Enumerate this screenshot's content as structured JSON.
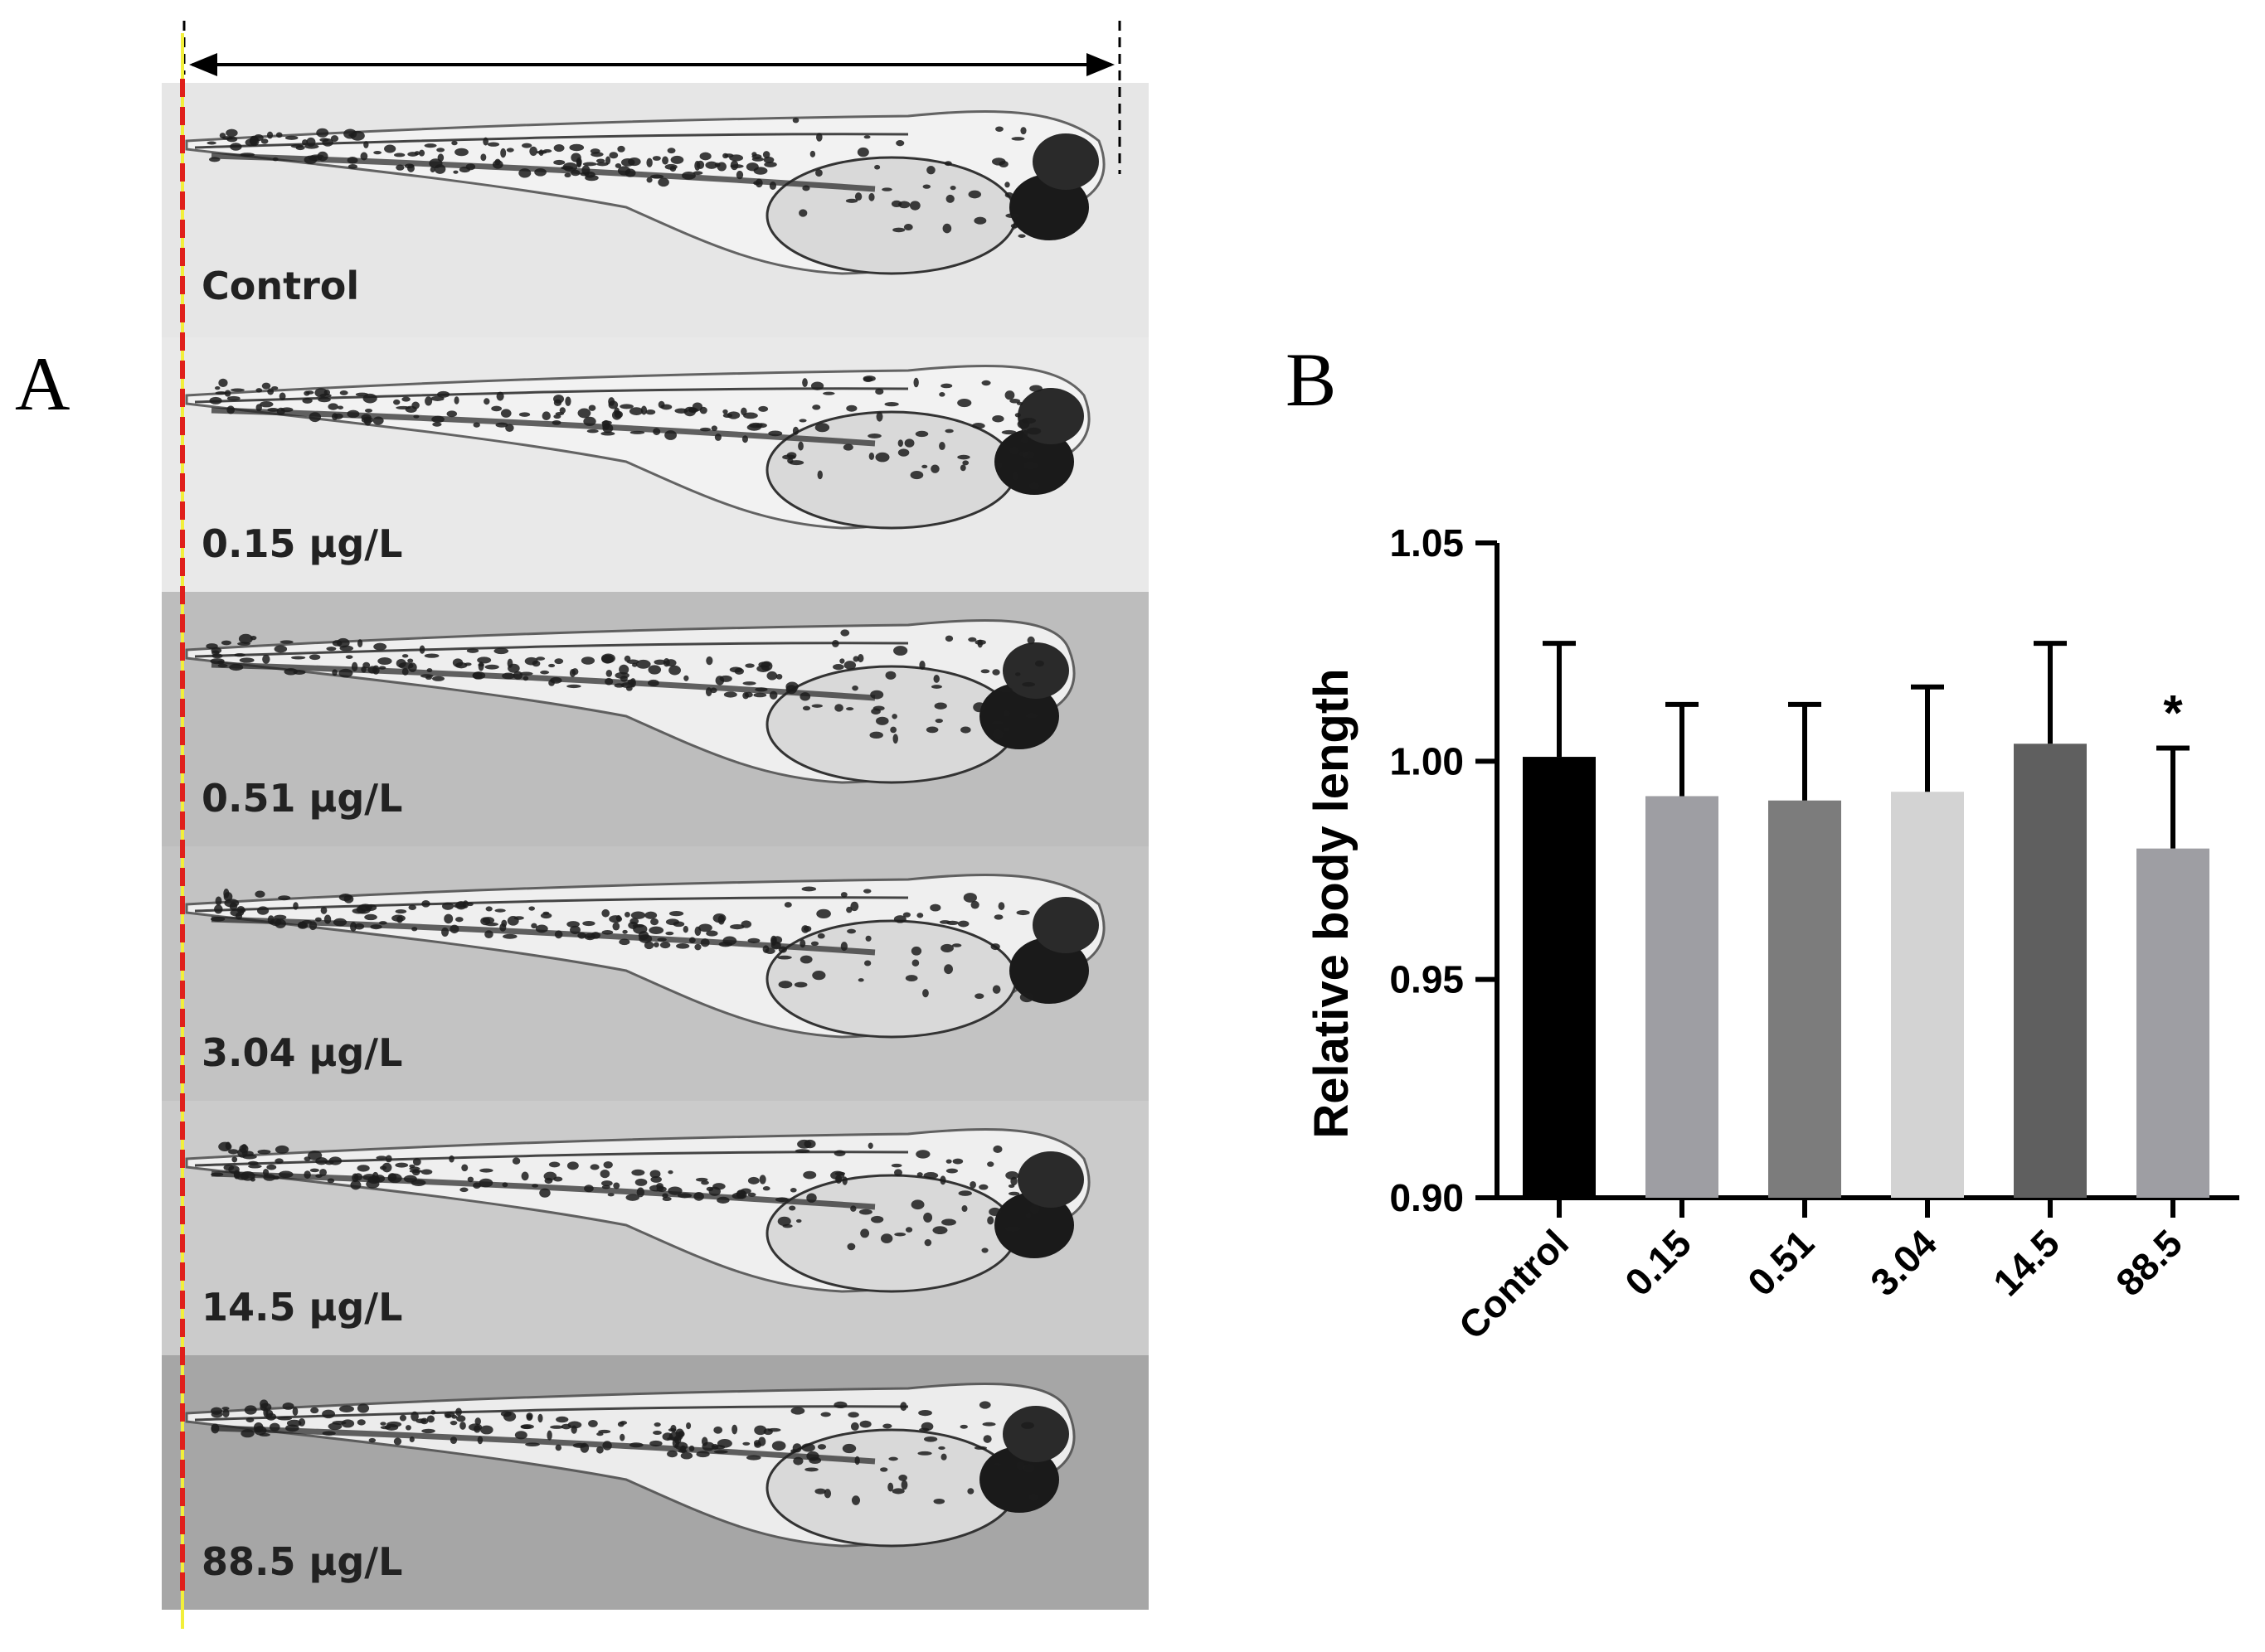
{
  "panel_a": {
    "letter": "A",
    "strips": [
      {
        "label": "Control",
        "bg": "#e6e6e6"
      },
      {
        "label": "0.15 μg/L",
        "bg": "#e9e9e9"
      },
      {
        "label": "0.51 μg/L",
        "bg": "#bdbdbd"
      },
      {
        "label": "3.04 μg/L",
        "bg": "#c3c3c3"
      },
      {
        "label": "14.5 μg/L",
        "bg": "#cbcbcb"
      },
      {
        "label": "88.5 μg/L",
        "bg": "#a6a6a6"
      }
    ]
  },
  "panel_b": {
    "letter": "B"
  },
  "chart_data": {
    "type": "bar",
    "categories": [
      "Control",
      "0.15",
      "0.51",
      "3.04",
      "14.5",
      "88.5"
    ],
    "values": [
      1.001,
      0.992,
      0.991,
      0.993,
      1.004,
      0.98
    ],
    "errors": [
      0.026,
      0.021,
      0.022,
      0.024,
      0.023,
      0.023
    ],
    "colors": [
      "#000000",
      "#9e9ea3",
      "#7c7c7c",
      "#d3d3d3",
      "#5f5f5f",
      "#9e9ea3"
    ],
    "significance": [
      "",
      "",
      "",
      "",
      "",
      "*"
    ],
    "title": "",
    "xlabel": "",
    "ylabel": "Relative body length",
    "ylim": [
      0.9,
      1.05
    ],
    "yticks": [
      "0.90",
      "0.95",
      "1.00",
      "1.05"
    ],
    "grid": false
  }
}
